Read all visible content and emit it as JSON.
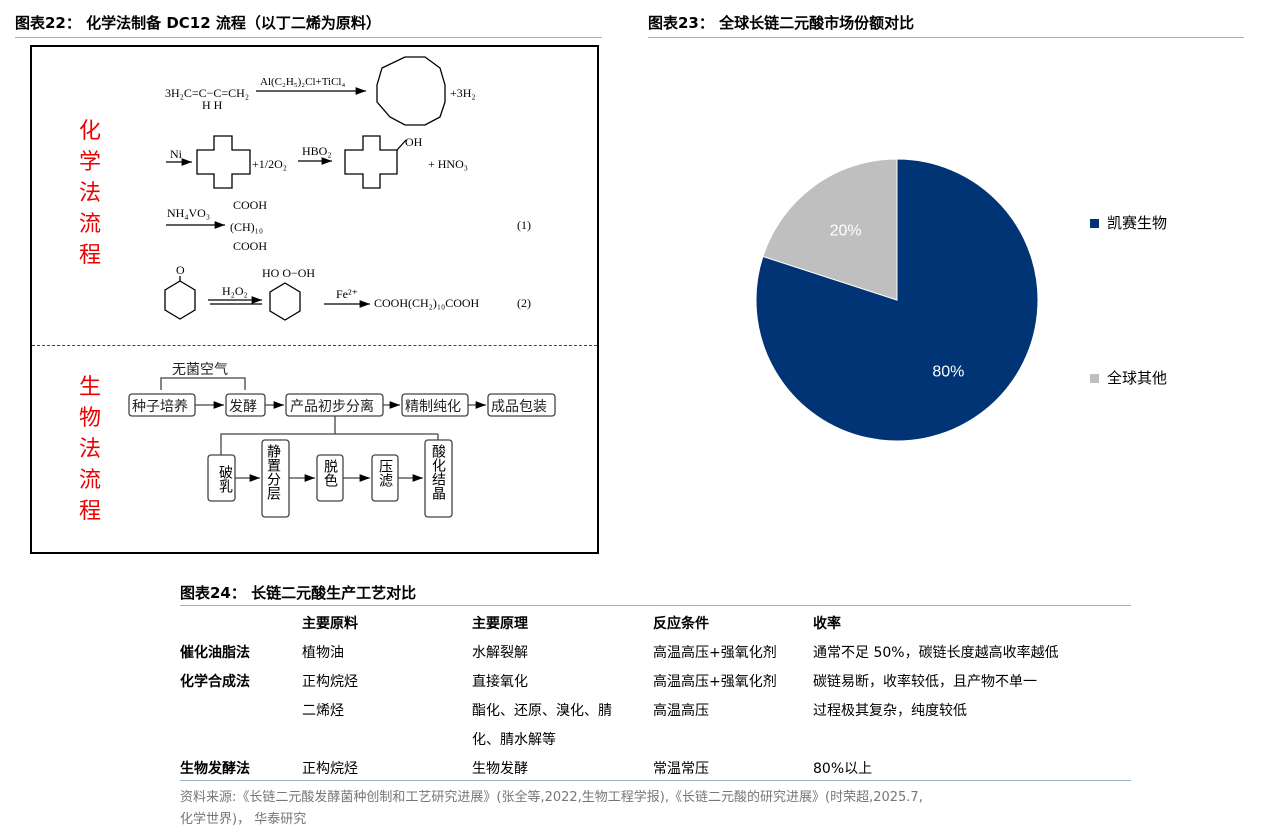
{
  "fig22": {
    "title": "图表22：  化学法制备 DC12 流程（以丁二烯为原料）",
    "chem_label": [
      "化",
      "学",
      "法",
      "流",
      "程"
    ],
    "bio_label": [
      "生",
      "物",
      "法",
      "流",
      "程"
    ],
    "chem": {
      "reactant1": "3H₂C=C−C=CH₂",
      "hh": "H  H",
      "cat1": "Al(C₂H₅)₂Cl+TiCl₄",
      "prod1": "+3H₂",
      "cat2": "Ni",
      "o2": "+1/2O₂",
      "cat3": "HBO₂",
      "oh": "OH",
      "hno3": "+ HNO₃",
      "cat4": "NH₄VO₃",
      "cooh1": "COOH",
      "ch10": "(CH)₁₀",
      "cooh2": "COOH",
      "eq1": "(1)",
      "ketone_o": "O",
      "h2o2": "H₂O₂",
      "hoooh": "HO   O−OH",
      "fe": "Fe²⁺",
      "prod2": "COOH(CH₂)₁₀COOH",
      "eq2": "(2)"
    },
    "bio": {
      "air": "无菌空气",
      "main": [
        "种子培养",
        "发酵",
        "产品初步分离",
        "精制纯化",
        "成品包装"
      ],
      "sub": [
        "破乳",
        "静置分层",
        "脱色",
        "压滤",
        "酸化结晶"
      ]
    }
  },
  "fig23": {
    "title": "图表23：  全球长链二元酸市场份额对比"
  },
  "chart_data": {
    "type": "pie",
    "slices": [
      {
        "name": "凯赛生物",
        "value": 80,
        "label": "80%",
        "color": "#003474"
      },
      {
        "name": "全球其他",
        "value": 20,
        "label": "20%",
        "color": "#bfbfbf"
      }
    ],
    "legend": "right"
  },
  "fig24": {
    "title": "图表24：  长链二元酸生产工艺对比",
    "headers": [
      "",
      "主要原料",
      "主要原理",
      "反应条件",
      "收率"
    ],
    "rows": [
      [
        "催化油脂法",
        "植物油",
        "水解裂解",
        "高温高压+强氧化剂",
        "通常不足 50%，碳链长度越高收率越低"
      ],
      [
        "化学合成法",
        "正构烷烃",
        "直接氧化",
        "高温高压+强氧化剂",
        "碳链易断，收率较低，且产物不单一"
      ],
      [
        "",
        "二烯烃",
        "酯化、还原、溴化、腈",
        "高温高压",
        "过程极其复杂，纯度较低"
      ],
      [
        "",
        "",
        "化、腈水解等",
        "",
        ""
      ],
      [
        "生物发酵法",
        "正构烷烃",
        "生物发酵",
        "常温常压",
        "80%以上"
      ]
    ]
  },
  "source": {
    "line1": "资料来源:《长链二元酸发酵菌种创制和工艺研究进展》(张全等,2022,生物工程学报),《长链二元酸的研究进展》(时荣超,2025.7,",
    "line2": "化学世界)， 华泰研究"
  }
}
